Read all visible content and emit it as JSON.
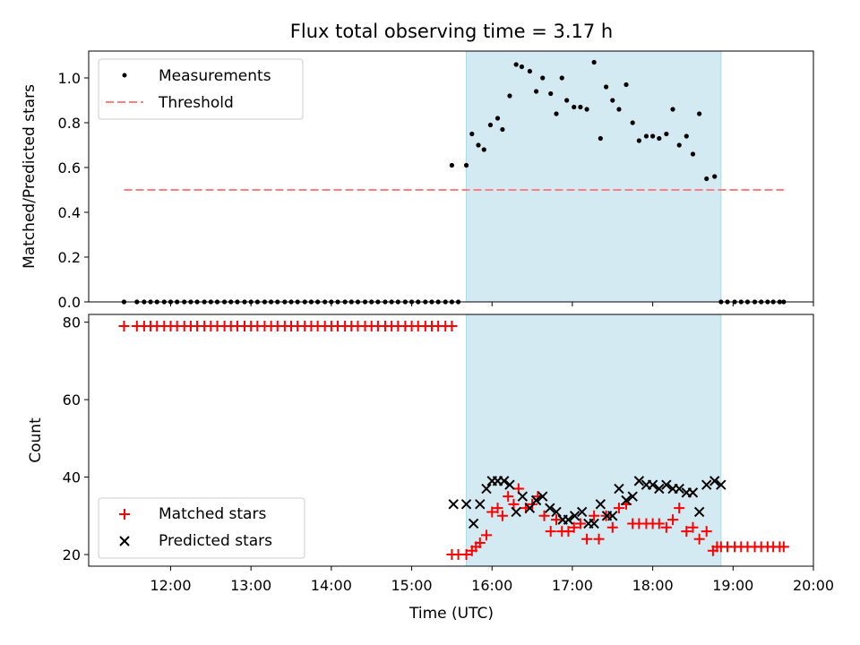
{
  "chart_data": {
    "title": "Flux total observing time = 3.17 h",
    "xlabel": "Time (UTC)",
    "x_tick_labels": [
      "12:00",
      "13:00",
      "14:00",
      "15:00",
      "16:00",
      "17:00",
      "18:00",
      "19:00",
      "20:00"
    ],
    "x_unit": "hour of day (UTC)",
    "xlim": [
      10.98,
      20.0
    ],
    "highlight_span": {
      "x_start": 15.68,
      "x_end": 18.85,
      "color": "#d3eaf2"
    },
    "top_panel": {
      "type": "scatter",
      "ylabel": "Matched/Predicted stars",
      "ylim": [
        0,
        1.12
      ],
      "y_tick_labels": [
        "0.0",
        "0.2",
        "0.4",
        "0.6",
        "0.8",
        "1.0"
      ],
      "legend": {
        "position": "top-left",
        "entries": [
          "Measurements",
          "Threshold"
        ]
      },
      "series": [
        {
          "name": "Measurements",
          "color": "#000000",
          "x": [
            11.42,
            11.58,
            11.67,
            11.75,
            11.83,
            11.92,
            12.0,
            12.08,
            12.17,
            12.25,
            12.33,
            12.42,
            12.5,
            12.58,
            12.67,
            12.75,
            12.83,
            12.92,
            13.0,
            13.08,
            13.17,
            13.25,
            13.33,
            13.42,
            13.5,
            13.58,
            13.67,
            13.75,
            13.83,
            13.92,
            14.0,
            14.08,
            14.17,
            14.25,
            14.33,
            14.42,
            14.5,
            14.58,
            14.67,
            14.75,
            14.83,
            14.92,
            15.0,
            15.08,
            15.17,
            15.25,
            15.33,
            15.42,
            15.5,
            15.5,
            15.58,
            15.68,
            15.75,
            15.83,
            15.9,
            15.98,
            16.07,
            16.13,
            16.22,
            16.3,
            16.37,
            16.47,
            16.55,
            16.63,
            16.73,
            16.8,
            16.87,
            16.93,
            17.02,
            17.1,
            17.18,
            17.27,
            17.35,
            17.42,
            17.5,
            17.58,
            17.67,
            17.75,
            17.83,
            17.92,
            18.0,
            18.08,
            18.17,
            18.25,
            18.33,
            18.42,
            18.5,
            18.58,
            18.67,
            18.77,
            18.85,
            18.93,
            19.02,
            19.1,
            19.18,
            19.27,
            19.35,
            19.43,
            19.5,
            19.58,
            19.63
          ],
          "y": [
            0,
            0,
            0,
            0,
            0,
            0,
            0,
            0,
            0,
            0,
            0,
            0,
            0,
            0,
            0,
            0,
            0,
            0,
            0,
            0,
            0,
            0,
            0,
            0,
            0,
            0,
            0,
            0,
            0,
            0,
            0,
            0,
            0,
            0,
            0,
            0,
            0,
            0,
            0,
            0,
            0,
            0,
            0,
            0,
            0,
            0,
            0,
            0,
            0,
            0.61,
            0,
            0.61,
            0.75,
            0.7,
            0.68,
            0.79,
            0.82,
            0.77,
            0.92,
            1.06,
            1.05,
            1.03,
            0.94,
            1.0,
            0.93,
            0.84,
            1.0,
            0.9,
            0.87,
            0.87,
            0.86,
            1.07,
            0.73,
            0.96,
            0.9,
            0.86,
            0.97,
            0.8,
            0.72,
            0.74,
            0.74,
            0.73,
            0.75,
            0.86,
            0.7,
            0.74,
            0.66,
            0.84,
            0.55,
            0.56,
            0,
            0,
            0,
            0,
            0,
            0,
            0,
            0,
            0,
            0,
            0
          ]
        },
        {
          "name": "Threshold",
          "style": "dashed",
          "color": "#ff7f7f",
          "x": [
            11.42,
            19.63
          ],
          "y": [
            0.5,
            0.5
          ]
        }
      ]
    },
    "bottom_panel": {
      "type": "scatter",
      "ylabel": "Count",
      "ylim": [
        17,
        82
      ],
      "y_tick_labels": [
        "20",
        "40",
        "60",
        "80"
      ],
      "legend": {
        "position": "bottom-left",
        "entries": [
          "Matched stars",
          "Predicted stars"
        ]
      },
      "series": [
        {
          "name": "Matched stars",
          "marker": "+",
          "color": "#ff0000",
          "x": [
            11.42,
            11.58,
            11.67,
            11.75,
            11.83,
            11.92,
            12.0,
            12.08,
            12.17,
            12.25,
            12.33,
            12.42,
            12.5,
            12.58,
            12.67,
            12.75,
            12.83,
            12.92,
            13.0,
            13.08,
            13.17,
            13.25,
            13.33,
            13.42,
            13.5,
            13.58,
            13.67,
            13.75,
            13.83,
            13.92,
            14.0,
            14.08,
            14.17,
            14.25,
            14.33,
            14.42,
            14.5,
            14.58,
            14.67,
            14.75,
            14.83,
            14.92,
            15.0,
            15.08,
            15.17,
            15.25,
            15.33,
            15.42,
            15.5,
            15.5,
            15.58,
            15.68,
            15.75,
            15.8,
            15.85,
            15.93,
            16.0,
            16.07,
            16.13,
            16.2,
            16.27,
            16.33,
            16.42,
            16.5,
            16.57,
            16.65,
            16.73,
            16.8,
            16.87,
            16.95,
            17.02,
            17.1,
            17.18,
            17.27,
            17.33,
            17.42,
            17.5,
            17.58,
            17.67,
            17.75,
            17.83,
            17.92,
            18.0,
            18.08,
            18.17,
            18.25,
            18.33,
            18.42,
            18.5,
            18.58,
            18.67,
            18.75,
            18.8,
            18.85,
            18.93,
            19.02,
            19.1,
            19.18,
            19.27,
            19.35,
            19.43,
            19.5,
            19.58,
            19.63
          ],
          "y": [
            79,
            79,
            79,
            79,
            79,
            79,
            79,
            79,
            79,
            79,
            79,
            79,
            79,
            79,
            79,
            79,
            79,
            79,
            79,
            79,
            79,
            79,
            79,
            79,
            79,
            79,
            79,
            79,
            79,
            79,
            79,
            79,
            79,
            79,
            79,
            79,
            79,
            79,
            79,
            79,
            79,
            79,
            79,
            79,
            79,
            79,
            79,
            79,
            79,
            20,
            20,
            20,
            21,
            22,
            23,
            25,
            31,
            32,
            30,
            35,
            33,
            37,
            32,
            33,
            35,
            30,
            26,
            29,
            26,
            26,
            27,
            28,
            24,
            30,
            24,
            30,
            27,
            32,
            33,
            28,
            28,
            28,
            28,
            28,
            27,
            29,
            32,
            26,
            27,
            24,
            26,
            21,
            22,
            22,
            22,
            22,
            22,
            22,
            22,
            22,
            22,
            22,
            22,
            22
          ]
        },
        {
          "name": "Predicted stars",
          "marker": "x",
          "color": "#000000",
          "x": [
            15.52,
            15.68,
            15.77,
            15.85,
            15.93,
            16.0,
            16.07,
            16.15,
            16.22,
            16.3,
            16.38,
            16.47,
            16.55,
            16.63,
            16.72,
            16.8,
            16.88,
            16.95,
            17.03,
            17.12,
            17.2,
            17.27,
            17.35,
            17.43,
            17.5,
            17.58,
            17.67,
            17.75,
            17.83,
            17.92,
            18.0,
            18.08,
            18.17,
            18.25,
            18.33,
            18.42,
            18.5,
            18.58,
            18.67,
            18.77,
            18.85
          ],
          "y": [
            33,
            33,
            28,
            33,
            37,
            39,
            39,
            39,
            38,
            31,
            35,
            32,
            34,
            35,
            32,
            31,
            29,
            29,
            30,
            31,
            28,
            28,
            33,
            30,
            30,
            37,
            34,
            35,
            39,
            38,
            38,
            37,
            38,
            37,
            37,
            36,
            36,
            31,
            38,
            39,
            38
          ]
        }
      ]
    }
  }
}
